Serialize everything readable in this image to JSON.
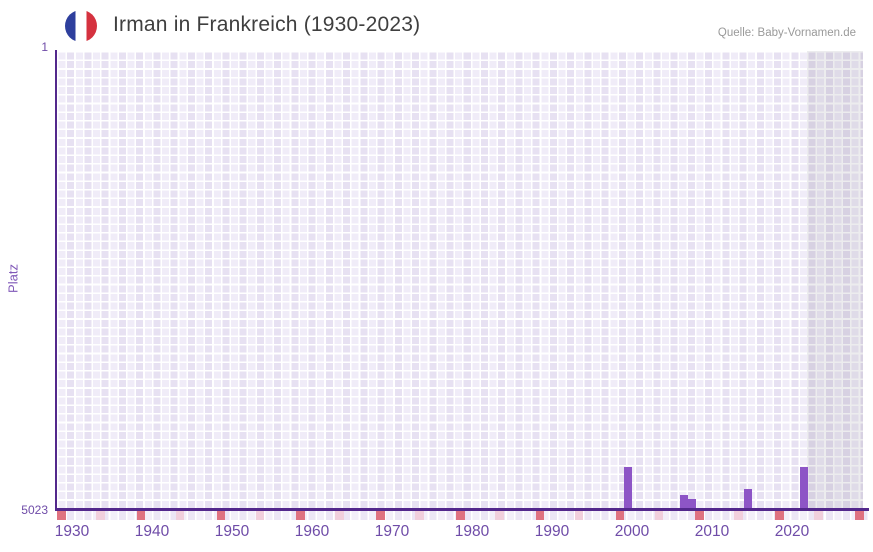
{
  "header": {
    "title": "Irman in Frankreich (1930-2023)",
    "source": "Quelle: Baby-Vornamen.de",
    "flag_icon": "france-flag"
  },
  "chart_data": {
    "type": "bar",
    "title": "Irman in Frankreich (1930-2023)",
    "xlabel": "",
    "ylabel": "Platz",
    "x_range": [
      1930,
      2023
    ],
    "x_tick_labels": [
      "1930",
      "1940",
      "1950",
      "1960",
      "1970",
      "1980",
      "1990",
      "2000",
      "2010",
      "2020"
    ],
    "y_axis": {
      "min": 1,
      "max": 5023,
      "inverted": true,
      "top_tick_label": "1",
      "bottom_tick_label": "5023"
    },
    "series": [
      {
        "name": "Platz",
        "points": [
          {
            "year": 1999,
            "rank": 4565
          },
          {
            "year": 2006,
            "rank": 4870
          },
          {
            "year": 2007,
            "rank": 4913
          },
          {
            "year": 2014,
            "rank": 4798
          },
          {
            "year": 2021,
            "rank": 4562
          }
        ]
      }
    ],
    "grid": true,
    "legend": false,
    "notes": "Shaded gray band at right edge covers the most recent years (2022-2023) with no ranking bar"
  },
  "colors": {
    "bar": "#8d55c6",
    "axis_line": "#53288c",
    "tick_label": "#6f4ca8",
    "axis_title": "#8058b8",
    "grid_light": "#f0ecf8",
    "grid_dark": "#e7e1f2",
    "strip_light": "#f3eff9",
    "strip_dark": "#ece6f5",
    "strip_pink": "#f1cfdc",
    "strip_red": "#df7280",
    "recent_band": "rgba(106,106,126,0.13)",
    "title_text": "#3f3f3f",
    "source_text": "#9a9a9a",
    "flag_blue": "#2e3f9d",
    "flag_white": "#ffffff",
    "flag_red": "#d5323f"
  }
}
